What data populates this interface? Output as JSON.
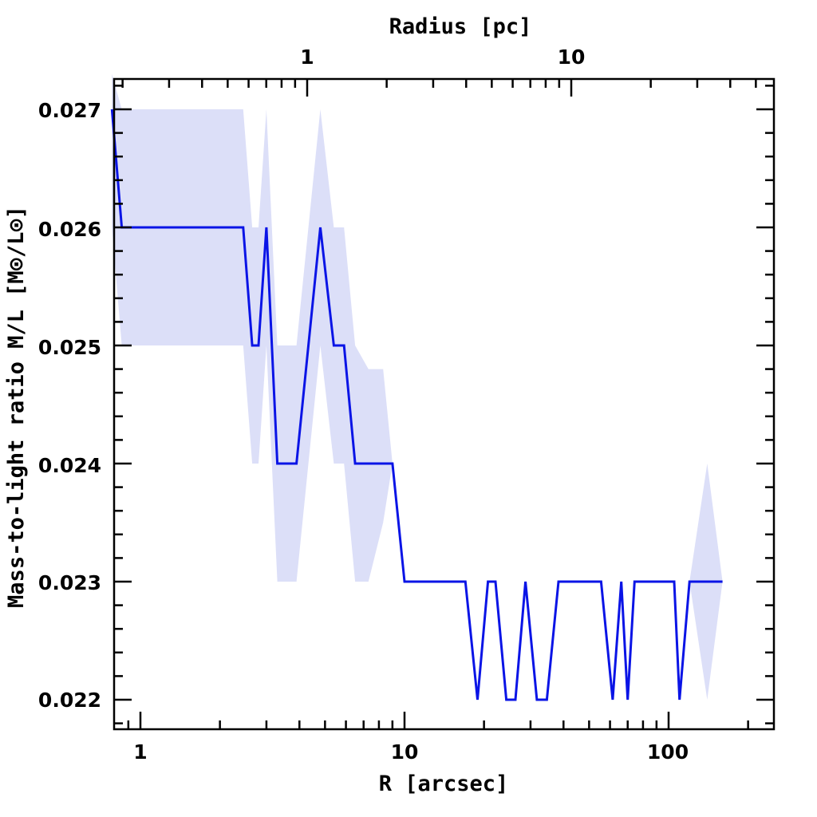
{
  "chart_data": {
    "type": "line",
    "title": "",
    "xlabel": "R [arcsec]",
    "ylabel": "Mass-to-light ratio M/L [M⊙/L⊙]",
    "x2label": "Radius [pc]",
    "xscale": "log",
    "xlim": [
      0.78,
      250
    ],
    "ylim": [
      0.02175,
      0.02725
    ],
    "x_ticklabels": [
      "1",
      "10",
      "100"
    ],
    "x2_ticklabels": [
      "1",
      "10"
    ],
    "y_ticklabels": [
      "0.022",
      "0.023",
      "0.024",
      "0.025",
      "0.026",
      "0.027"
    ],
    "grid": false,
    "legend": "none",
    "colors": {
      "line": "#0a14e6",
      "band": "#dcdff8",
      "frame": "#000000"
    },
    "series": [
      {
        "x": [
          0.78,
          0.85,
          1.0,
          2.2,
          2.45,
          2.65,
          2.8,
          3.0,
          3.3,
          3.9,
          4.8,
          5.4,
          5.9,
          6.5,
          7.3,
          8.3,
          9.0,
          10.0,
          15.0,
          17.0,
          18.9,
          20.7,
          22.1,
          24.3,
          26.3,
          28.7,
          31.7,
          34.6,
          38.3,
          43.5,
          48.4,
          55.5,
          61.4,
          66.2,
          70.0,
          74.3,
          80.0,
          90.0,
          105.0,
          110.0,
          120.0,
          140.0,
          160.0
        ],
        "y": [
          0.027,
          0.026,
          0.026,
          0.026,
          0.026,
          0.025,
          0.025,
          0.026,
          0.024,
          0.024,
          0.026,
          0.025,
          0.025,
          0.024,
          0.024,
          0.024,
          0.024,
          0.023,
          0.023,
          0.023,
          0.022,
          0.023,
          0.023,
          0.022,
          0.022,
          0.023,
          0.022,
          0.022,
          0.023,
          0.023,
          0.023,
          0.023,
          0.022,
          0.023,
          0.022,
          0.023,
          0.023,
          0.023,
          0.023,
          0.022,
          0.023,
          0.023,
          0.023
        ],
        "y_upper": [
          0.0273,
          0.027,
          0.027,
          0.027,
          0.027,
          0.026,
          0.026,
          0.027,
          0.025,
          0.025,
          0.027,
          0.026,
          0.026,
          0.025,
          0.0248,
          0.0248,
          0.024,
          0.023,
          0.023,
          0.023,
          0.022,
          0.023,
          0.023,
          0.022,
          0.022,
          0.023,
          0.022,
          0.022,
          0.023,
          0.023,
          0.023,
          0.023,
          0.022,
          0.023,
          0.022,
          0.023,
          0.023,
          0.023,
          0.023,
          0.022,
          0.023,
          0.024,
          0.023
        ],
        "y_lower": [
          0.026,
          0.025,
          0.025,
          0.025,
          0.025,
          0.024,
          0.024,
          0.025,
          0.023,
          0.023,
          0.025,
          0.024,
          0.024,
          0.023,
          0.023,
          0.0235,
          0.024,
          0.023,
          0.023,
          0.023,
          0.022,
          0.023,
          0.023,
          0.022,
          0.022,
          0.023,
          0.022,
          0.022,
          0.023,
          0.023,
          0.023,
          0.023,
          0.022,
          0.023,
          0.022,
          0.023,
          0.023,
          0.023,
          0.023,
          0.022,
          0.023,
          0.022,
          0.023
        ]
      }
    ]
  }
}
